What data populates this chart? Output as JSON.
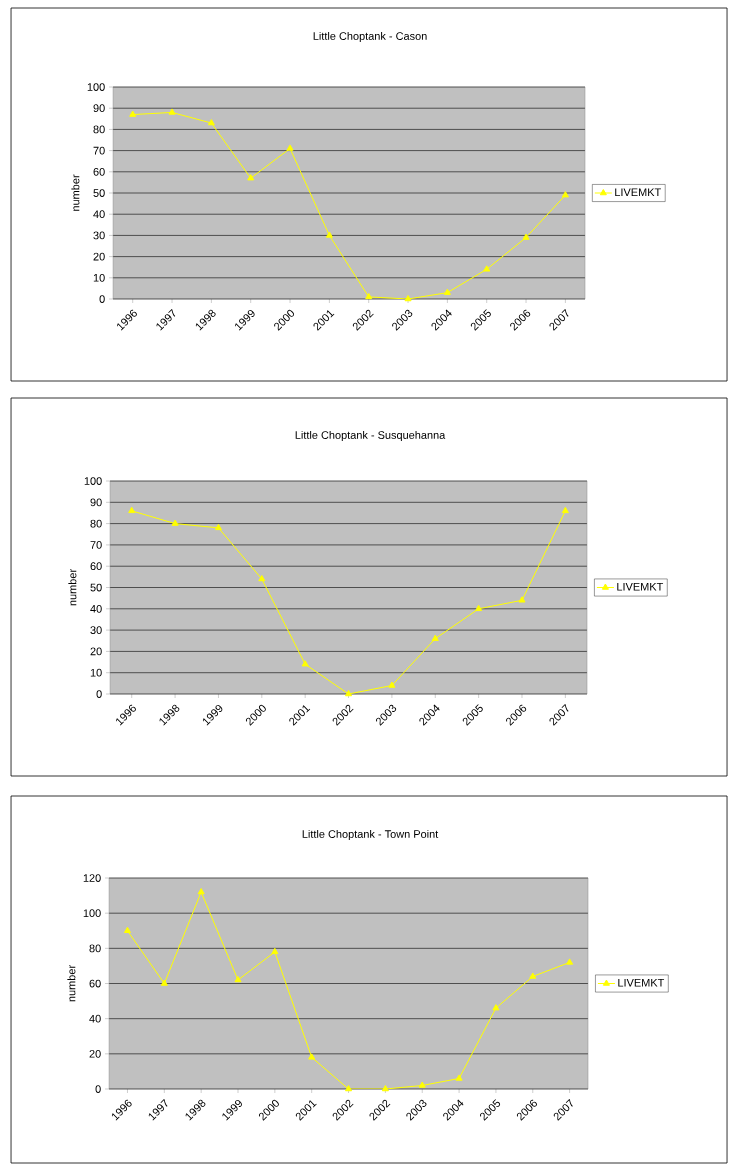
{
  "chart_data": [
    {
      "type": "line",
      "title": "Little Choptank - Cason",
      "ylabel": "number",
      "categories": [
        "1996",
        "1997",
        "1998",
        "1999",
        "2000",
        "2001",
        "2002",
        "2003",
        "2004",
        "2005",
        "2006",
        "2007"
      ],
      "series": [
        {
          "name": "LIVEMKT",
          "color": "#ffff00",
          "values": [
            87,
            88,
            83,
            57,
            71,
            30,
            1,
            0,
            3,
            14,
            29,
            49
          ]
        }
      ],
      "ylim": [
        0,
        100
      ],
      "yticks": [
        0,
        10,
        20,
        30,
        40,
        50,
        60,
        70,
        80,
        90,
        100
      ],
      "grid": "y",
      "legend": "right",
      "marker": "triangle"
    },
    {
      "type": "line",
      "title": "Little Choptank - Susquehanna",
      "ylabel": "number",
      "categories": [
        "1996",
        "1998",
        "1999",
        "2000",
        "2001",
        "2002",
        "2003",
        "2004",
        "2005",
        "2006",
        "2007"
      ],
      "series": [
        {
          "name": "LIVEMKT",
          "color": "#ffff00",
          "values": [
            86,
            80,
            78,
            54,
            14,
            0,
            4,
            26,
            40,
            44,
            86
          ]
        }
      ],
      "ylim": [
        0,
        100
      ],
      "yticks": [
        0,
        10,
        20,
        30,
        40,
        50,
        60,
        70,
        80,
        90,
        100
      ],
      "grid": "y",
      "legend": "right",
      "marker": "triangle"
    },
    {
      "type": "line",
      "title": "Little Choptank - Town Point",
      "ylabel": "number",
      "categories": [
        "1996",
        "1997",
        "1998",
        "1999",
        "2000",
        "2001",
        "2002",
        "2002",
        "2003",
        "2004",
        "2005",
        "2006",
        "2007"
      ],
      "series": [
        {
          "name": "LIVEMKT",
          "color": "#ffff00",
          "values": [
            90,
            60,
            112,
            62,
            78,
            18,
            0,
            0,
            2,
            6,
            46,
            64,
            72
          ]
        }
      ],
      "ylim": [
        0,
        120
      ],
      "yticks": [
        0,
        20,
        40,
        60,
        80,
        100,
        120
      ],
      "grid": "y",
      "legend": "right",
      "marker": "triangle"
    }
  ]
}
